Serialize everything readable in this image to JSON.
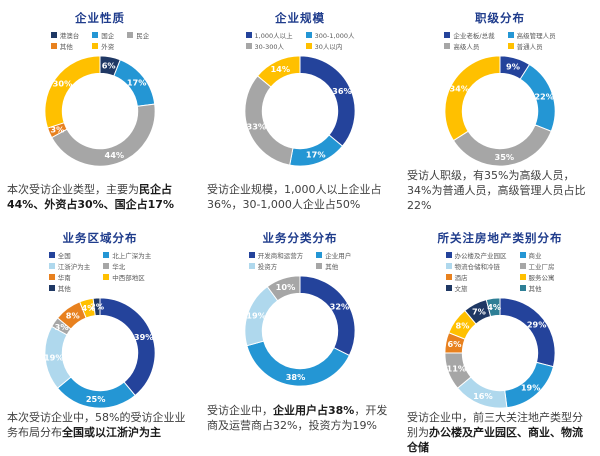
{
  "palette": {
    "darkblue": "#24439B",
    "blue": "#2496D4",
    "paleblue": "#AFD8ED",
    "gray": "#A6A6A6",
    "yellow": "#FFC000",
    "orange": "#E8811F",
    "navy": "#1F3864",
    "teal": "#2E7F96",
    "title_color": "#1F3C8C",
    "caption_color": "#404040"
  },
  "chart_data": [
    {
      "type": "donut",
      "title": "企业性质",
      "legend_cols": 3,
      "slices": [
        {
          "label": "港澳台",
          "value": 6,
          "color": "navy"
        },
        {
          "label": "国企",
          "value": 17,
          "color": "blue"
        },
        {
          "label": "民企",
          "value": 44,
          "color": "gray"
        },
        {
          "label": "其他",
          "value": 3,
          "color": "orange"
        },
        {
          "label": "外资",
          "value": 30,
          "color": "yellow"
        }
      ],
      "caption": [
        {
          "text": "本次受访企业类型，主要为",
          "bold": false
        },
        {
          "text": "民企占44%、外资占30%、国企占17%",
          "bold": true
        }
      ]
    },
    {
      "type": "donut",
      "title": "企业规模",
      "legend_cols": 2,
      "slices": [
        {
          "label": "1,000人以上",
          "value": 36,
          "color": "darkblue"
        },
        {
          "label": "300-1,000人",
          "value": 17,
          "color": "blue"
        },
        {
          "label": "30-300人",
          "value": 33,
          "color": "gray"
        },
        {
          "label": "30人以内",
          "value": 14,
          "color": "yellow"
        }
      ],
      "caption": [
        {
          "text": "受访企业规模，1,000人以上企业占36%，30-1,000人企业占50%",
          "bold": false
        }
      ]
    },
    {
      "type": "donut",
      "title": "职级分布",
      "legend_cols": 2,
      "slices": [
        {
          "label": "企业老板/总裁",
          "value": 9,
          "color": "darkblue"
        },
        {
          "label": "高级管理人员",
          "value": 22,
          "color": "blue"
        },
        {
          "label": "高级人员",
          "value": 35,
          "color": "gray"
        },
        {
          "label": "普通人员",
          "value": 34,
          "color": "yellow"
        }
      ],
      "caption": [
        {
          "text": "受访人职级，有35%为高级人员，34%为普通人员，高级管理人员占比22%",
          "bold": false
        }
      ]
    },
    {
      "type": "donut",
      "title": "业务区域分布",
      "legend_cols": 2,
      "slices": [
        {
          "label": "全国",
          "value": 39,
          "color": "darkblue"
        },
        {
          "label": "北上广深为主",
          "value": 25,
          "color": "blue"
        },
        {
          "label": "江浙沪为主",
          "value": 19,
          "color": "paleblue"
        },
        {
          "label": "华北",
          "value": 3,
          "color": "gray"
        },
        {
          "label": "华南",
          "value": 8,
          "color": "orange"
        },
        {
          "label": "中西部地区",
          "value": 4,
          "color": "yellow"
        },
        {
          "label": "其他",
          "value": 2,
          "color": "navy"
        }
      ],
      "caption": [
        {
          "text": "本次受访企业中，58%的受访企业业务布局分布",
          "bold": false
        },
        {
          "text": "全国或以江浙沪为主",
          "bold": true
        }
      ]
    },
    {
      "type": "donut",
      "title": "业务分类分布",
      "legend_cols": 2,
      "slices": [
        {
          "label": "开发商和运营方",
          "value": 32,
          "color": "darkblue"
        },
        {
          "label": "企业用户",
          "value": 38,
          "color": "blue"
        },
        {
          "label": "投资方",
          "value": 19,
          "color": "paleblue"
        },
        {
          "label": "其他",
          "value": 10,
          "color": "gray"
        }
      ],
      "caption": [
        {
          "text": "受访企业中，",
          "bold": false
        },
        {
          "text": "企业用户占38%",
          "bold": true
        },
        {
          "text": "，开发商及运营商占32%，投资方为19%",
          "bold": false
        }
      ]
    },
    {
      "type": "donut",
      "title": "所关注房地产类别分布",
      "legend_cols": 2,
      "slices": [
        {
          "label": "办公楼及产业园区",
          "value": 29,
          "color": "darkblue"
        },
        {
          "label": "商业",
          "value": 19,
          "color": "blue"
        },
        {
          "label": "物流仓储和冷链",
          "value": 16,
          "color": "paleblue"
        },
        {
          "label": "工业厂房",
          "value": 11,
          "color": "gray"
        },
        {
          "label": "酒店",
          "value": 6,
          "color": "orange"
        },
        {
          "label": "服务公寓",
          "value": 8,
          "color": "yellow"
        },
        {
          "label": "文旅",
          "value": 7,
          "color": "navy"
        },
        {
          "label": "其他",
          "value": 4,
          "color": "teal"
        }
      ],
      "caption": [
        {
          "text": "受访企业中，前三大关注地产类型分别为",
          "bold": false
        },
        {
          "text": "办公楼及产业园区、商业、物流仓储",
          "bold": true
        }
      ]
    }
  ]
}
